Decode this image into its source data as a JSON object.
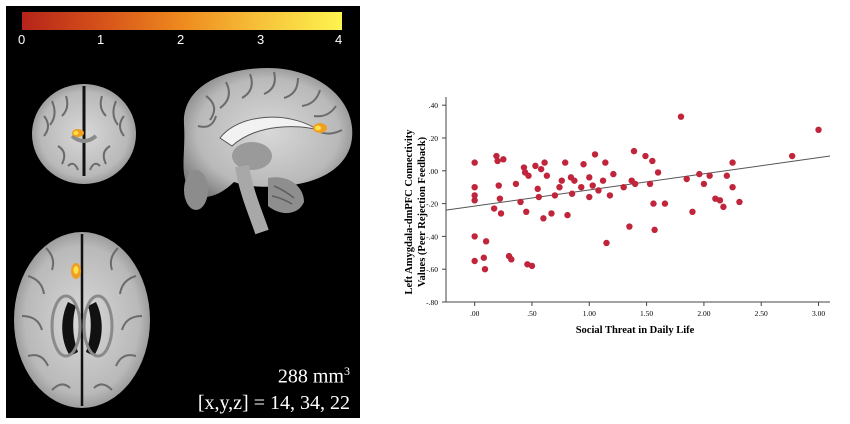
{
  "colorbar": {
    "ticks": [
      "0",
      "1",
      "2",
      "3",
      "4"
    ],
    "colors": [
      "#b5241a",
      "#d6521a",
      "#ee8a1e",
      "#f7c33a",
      "#fdf44f"
    ]
  },
  "brain_caption": {
    "volume_value": "288 mm",
    "volume_sup": "3",
    "coords": "[x,y,z] = 14, 34, 22"
  },
  "chart_data": {
    "type": "scatter",
    "xlabel": "Social Threat in Daily Life",
    "ylabel": "Left Amygdala-dmPFC Connectivity Values (Peer Rejection Feedback)",
    "xlim": [
      -0.25,
      3.1
    ],
    "ylim": [
      -0.8,
      0.45
    ],
    "x_ticks": [
      0,
      0.5,
      1.0,
      1.5,
      2.0,
      2.5,
      3.0
    ],
    "x_tick_labels": [
      ".00",
      ".50",
      "1.00",
      "1.50",
      "2.00",
      "2.50",
      "3.00"
    ],
    "y_ticks": [
      0.4,
      0.2,
      0.0,
      -0.2,
      -0.4,
      -0.6,
      -0.8
    ],
    "y_tick_labels": [
      ".40",
      ".20",
      ".00",
      "-.20",
      "-.40",
      "-.60",
      "-.80"
    ],
    "point_color": "#c0253c",
    "fit_line": {
      "x": [
        -0.25,
        3.1
      ],
      "y": [
        -0.24,
        0.09
      ]
    },
    "points": [
      [
        0.0,
        0.05
      ],
      [
        0.0,
        -0.1
      ],
      [
        0.0,
        -0.15
      ],
      [
        0.0,
        -0.18
      ],
      [
        0.0,
        -0.4
      ],
      [
        0.0,
        -0.55
      ],
      [
        0.08,
        -0.53
      ],
      [
        0.09,
        -0.6
      ],
      [
        0.1,
        -0.43
      ],
      [
        0.17,
        -0.23
      ],
      [
        0.19,
        0.09
      ],
      [
        0.2,
        0.06
      ],
      [
        0.21,
        -0.09
      ],
      [
        0.22,
        -0.17
      ],
      [
        0.23,
        -0.26
      ],
      [
        0.25,
        0.07
      ],
      [
        0.3,
        -0.52
      ],
      [
        0.32,
        -0.54
      ],
      [
        0.36,
        -0.08
      ],
      [
        0.4,
        -0.19
      ],
      [
        0.43,
        0.02
      ],
      [
        0.44,
        -0.01
      ],
      [
        0.45,
        -0.25
      ],
      [
        0.46,
        -0.57
      ],
      [
        0.47,
        -0.03
      ],
      [
        0.5,
        -0.58
      ],
      [
        0.53,
        0.03
      ],
      [
        0.55,
        -0.11
      ],
      [
        0.56,
        -0.16
      ],
      [
        0.58,
        0.01
      ],
      [
        0.6,
        -0.29
      ],
      [
        0.61,
        0.05
      ],
      [
        0.63,
        -0.03
      ],
      [
        0.67,
        -0.26
      ],
      [
        0.7,
        -0.15
      ],
      [
        0.74,
        -0.1
      ],
      [
        0.76,
        -0.06
      ],
      [
        0.79,
        0.05
      ],
      [
        0.81,
        -0.27
      ],
      [
        0.84,
        -0.04
      ],
      [
        0.85,
        -0.14
      ],
      [
        0.87,
        -0.06
      ],
      [
        0.93,
        -0.1
      ],
      [
        0.95,
        0.04
      ],
      [
        1.0,
        -0.16
      ],
      [
        1.0,
        -0.04
      ],
      [
        1.03,
        -0.09
      ],
      [
        1.05,
        0.1
      ],
      [
        1.08,
        -0.12
      ],
      [
        1.12,
        -0.06
      ],
      [
        1.14,
        0.05
      ],
      [
        1.15,
        -0.44
      ],
      [
        1.18,
        -0.15
      ],
      [
        1.21,
        -0.02
      ],
      [
        1.3,
        -0.1
      ],
      [
        1.35,
        -0.34
      ],
      [
        1.37,
        -0.06
      ],
      [
        1.39,
        0.12
      ],
      [
        1.4,
        -0.08
      ],
      [
        1.49,
        0.09
      ],
      [
        1.53,
        -0.08
      ],
      [
        1.55,
        0.06
      ],
      [
        1.56,
        -0.2
      ],
      [
        1.57,
        -0.36
      ],
      [
        1.6,
        -0.01
      ],
      [
        1.66,
        -0.2
      ],
      [
        1.8,
        0.33
      ],
      [
        1.85,
        -0.05
      ],
      [
        1.9,
        -0.25
      ],
      [
        1.96,
        -0.02
      ],
      [
        2.0,
        -0.08
      ],
      [
        2.05,
        -0.03
      ],
      [
        2.1,
        -0.17
      ],
      [
        2.14,
        -0.18
      ],
      [
        2.17,
        -0.22
      ],
      [
        2.2,
        -0.03
      ],
      [
        2.25,
        0.05
      ],
      [
        2.25,
        -0.1
      ],
      [
        2.31,
        -0.19
      ],
      [
        2.77,
        0.09
      ],
      [
        3.0,
        0.25
      ]
    ]
  }
}
